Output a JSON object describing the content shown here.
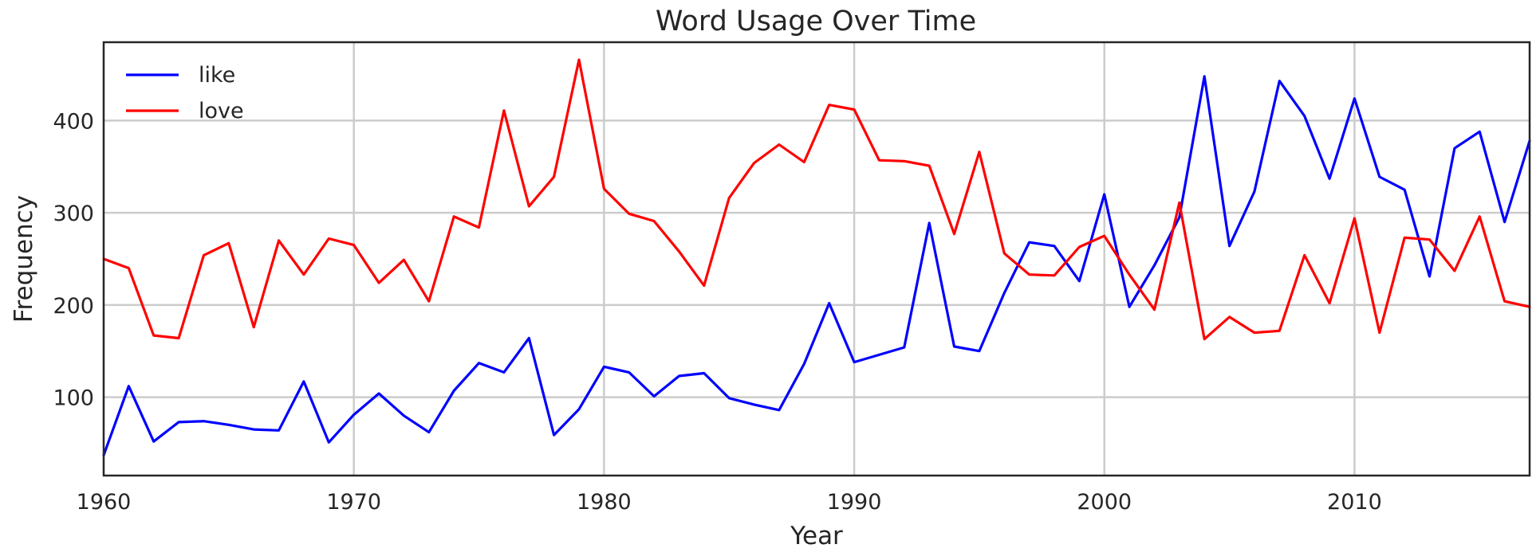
{
  "chart_data": {
    "type": "line",
    "title": "Word Usage Over Time",
    "xlabel": "Year",
    "ylabel": "Frequency",
    "xlim": [
      1960,
      2017
    ],
    "ylim": [
      15,
      485
    ],
    "xticks": [
      1960,
      1970,
      1980,
      1990,
      2000,
      2010
    ],
    "yticks": [
      100,
      200,
      300,
      400
    ],
    "grid": true,
    "legend_position": "top-left",
    "x": [
      1960,
      1961,
      1962,
      1963,
      1964,
      1965,
      1966,
      1967,
      1968,
      1969,
      1970,
      1971,
      1972,
      1973,
      1974,
      1975,
      1976,
      1977,
      1978,
      1979,
      1980,
      1981,
      1982,
      1983,
      1984,
      1985,
      1986,
      1987,
      1988,
      1989,
      1990,
      1991,
      1992,
      1993,
      1994,
      1995,
      1996,
      1997,
      1998,
      1999,
      2000,
      2001,
      2002,
      2003,
      2004,
      2005,
      2006,
      2007,
      2008,
      2009,
      2010,
      2011,
      2012,
      2013,
      2014,
      2015,
      2016,
      2017
    ],
    "series": [
      {
        "name": "like",
        "color": "#0000ff",
        "values": [
          37,
          112,
          52,
          73,
          74,
          70,
          65,
          64,
          117,
          51,
          81,
          104,
          80,
          62,
          107,
          137,
          127,
          164,
          59,
          87,
          133,
          127,
          101,
          123,
          126,
          99,
          92,
          86,
          136,
          202,
          138,
          146,
          154,
          289,
          155,
          150,
          213,
          268,
          264,
          226,
          320,
          198,
          243,
          295,
          448,
          264,
          323,
          443,
          405,
          337,
          424,
          339,
          325,
          231,
          370,
          388,
          290,
          378
        ]
      },
      {
        "name": "love",
        "color": "#ff0000",
        "values": [
          250,
          240,
          167,
          164,
          254,
          267,
          176,
          270,
          233,
          272,
          265,
          224,
          249,
          204,
          296,
          284,
          411,
          307,
          339,
          466,
          326,
          299,
          291,
          258,
          221,
          316,
          354,
          374,
          355,
          417,
          412,
          357,
          356,
          351,
          277,
          366,
          256,
          233,
          232,
          263,
          275,
          233,
          195,
          311,
          163,
          187,
          170,
          172,
          254,
          202,
          294,
          170,
          273,
          271,
          237,
          296,
          204,
          198
        ]
      }
    ]
  }
}
